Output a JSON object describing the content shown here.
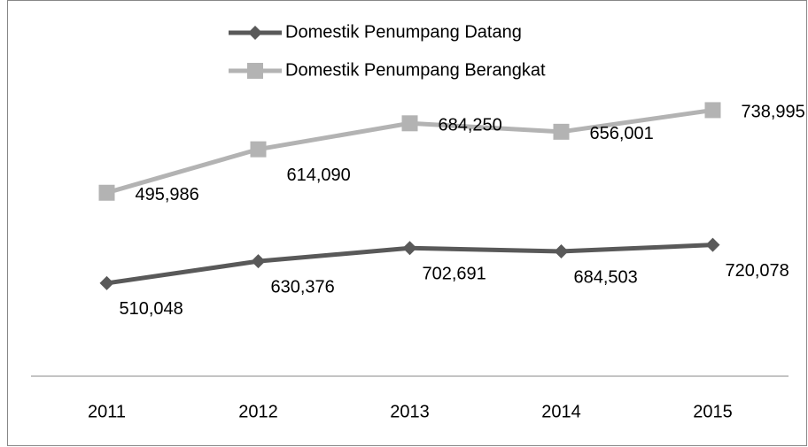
{
  "chart_data": {
    "type": "line",
    "stacked": true,
    "categories": [
      "2011",
      "2012",
      "2013",
      "2014",
      "2015"
    ],
    "series": [
      {
        "name": "Domestik Penumpang Datang",
        "color": "#595959",
        "marker": "diamond",
        "values": [
          510048,
          630376,
          702691,
          684503,
          720078
        ],
        "value_labels": [
          "510,048",
          "630,376",
          "702,691",
          "684,503",
          "720,078"
        ]
      },
      {
        "name": "Domestik Penumpang Berangkat",
        "color": "#b3b3b3",
        "marker": "square",
        "values": [
          495986,
          614090,
          684250,
          656001,
          738995
        ],
        "value_labels": [
          "495,986",
          "614,090",
          "684,250",
          "656,001",
          "738,995"
        ]
      }
    ],
    "ylim": [
      0,
      2000000
    ],
    "legend": "top"
  }
}
